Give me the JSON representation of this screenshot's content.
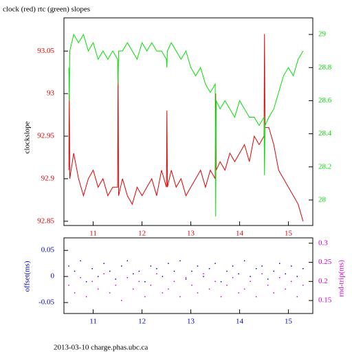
{
  "chart_data": [
    {
      "type": "line",
      "title": "clock (red) rtc (green) slopes",
      "ylabel": "clockslope",
      "x": [
        10.5,
        10.51,
        10.52,
        10.6,
        10.7,
        10.8,
        10.9,
        11.0,
        11.1,
        11.2,
        11.3,
        11.4,
        11.5,
        11.51,
        11.52,
        11.6,
        11.7,
        11.8,
        11.9,
        12.0,
        12.1,
        12.2,
        12.3,
        12.4,
        12.5,
        12.51,
        12.52,
        12.6,
        12.7,
        12.8,
        12.9,
        13.0,
        13.1,
        13.2,
        13.3,
        13.4,
        13.5,
        13.51,
        13.52,
        13.6,
        13.7,
        13.8,
        13.9,
        14.0,
        14.1,
        14.2,
        14.3,
        14.4,
        14.5,
        14.51,
        14.52,
        14.6,
        14.7,
        14.8,
        14.9,
        15.0,
        15.1,
        15.2,
        15.3
      ],
      "series": [
        {
          "name": "clock",
          "color": "#e00000",
          "values": [
            92.91,
            93.0,
            92.9,
            92.93,
            92.9,
            92.88,
            92.9,
            92.91,
            92.89,
            92.9,
            92.88,
            92.89,
            92.89,
            93.03,
            92.88,
            92.9,
            92.88,
            92.87,
            92.89,
            92.88,
            92.89,
            92.9,
            92.88,
            92.91,
            92.89,
            92.98,
            92.89,
            92.91,
            92.89,
            92.9,
            92.88,
            92.89,
            92.9,
            92.91,
            92.89,
            92.91,
            92.9,
            93.0,
            92.91,
            92.92,
            92.91,
            92.93,
            92.92,
            92.93,
            92.94,
            92.92,
            92.95,
            92.94,
            92.95,
            93.07,
            92.96,
            92.96,
            92.94,
            92.91,
            92.9,
            92.89,
            92.88,
            92.87,
            92.85
          ]
        },
        {
          "name": "rtc",
          "color": "#00e000",
          "axis": "y2",
          "values": [
            28.8,
            28.6,
            28.9,
            29.0,
            28.95,
            29.0,
            28.9,
            28.95,
            28.85,
            28.9,
            28.85,
            28.9,
            28.85,
            28.7,
            28.9,
            28.9,
            28.95,
            28.9,
            28.85,
            28.95,
            28.9,
            28.95,
            28.9,
            28.9,
            28.85,
            28.8,
            28.9,
            28.95,
            28.9,
            28.85,
            28.9,
            28.8,
            28.75,
            28.8,
            28.7,
            28.65,
            28.7,
            27.9,
            28.6,
            28.55,
            28.6,
            28.55,
            28.5,
            28.6,
            28.55,
            28.5,
            28.5,
            28.45,
            28.5,
            28.15,
            28.45,
            28.5,
            28.55,
            28.65,
            28.75,
            28.8,
            28.75,
            28.85,
            28.9
          ]
        }
      ],
      "xlim": [
        10.4,
        15.5
      ],
      "xticks": [
        11,
        12,
        13,
        14,
        15
      ],
      "ylim": [
        92.845,
        93.089
      ],
      "yticks": [
        92.85,
        92.9,
        92.95,
        93,
        93.05
      ],
      "y2lim": [
        27.846,
        29.1
      ],
      "y2ticks": [
        28,
        28.2,
        28.4,
        28.6,
        28.8,
        29
      ]
    },
    {
      "type": "scatter",
      "ylabel": "offset(ms)",
      "y2label": "rnd-trip(ms)",
      "x": [
        10.5,
        10.62,
        10.74,
        10.86,
        10.98,
        11.1,
        11.22,
        11.34,
        11.46,
        11.58,
        11.7,
        11.82,
        11.94,
        12.06,
        12.18,
        12.3,
        12.42,
        12.54,
        12.66,
        12.78,
        12.9,
        13.02,
        13.14,
        13.26,
        13.38,
        13.5,
        13.62,
        13.74,
        13.86,
        13.98,
        14.1,
        14.22,
        14.34,
        14.46,
        14.58,
        14.7,
        14.82,
        14.94,
        15.06,
        15.18,
        15.3
      ],
      "series": [
        {
          "name": "offset",
          "color": "#0000cc",
          "values": [
            0.02,
            0.01,
            0.03,
            -0.01,
            0.015,
            0.0,
            0.025,
            0.01,
            -0.005,
            0.02,
            0.03,
            0.005,
            0.01,
            -0.01,
            0.02,
            0.015,
            0.0,
            0.025,
            0.01,
            0.03,
            -0.005,
            0.01,
            0.02,
            0.0,
            0.015,
            0.025,
            -0.01,
            0.01,
            0.02,
            0.005,
            0.03,
            0.0,
            0.015,
            0.02,
            -0.005,
            0.01,
            0.025,
            0.005,
            0.02,
            0.0,
            0.015
          ]
        },
        {
          "name": "rnd-trip",
          "color": "#cc00cc",
          "axis": "y2",
          "values": [
            0.19,
            0.17,
            0.21,
            0.16,
            0.2,
            0.18,
            0.22,
            0.17,
            0.19,
            0.15,
            0.21,
            0.18,
            0.2,
            0.16,
            0.19,
            0.22,
            0.17,
            0.18,
            0.2,
            0.16,
            0.21,
            0.19,
            0.17,
            0.22,
            0.18,
            0.2,
            0.16,
            0.19,
            0.21,
            0.17,
            0.18,
            0.2,
            0.16,
            0.22,
            0.19,
            0.17,
            0.21,
            0.18,
            0.2,
            0.16,
            0.19
          ]
        }
      ],
      "xlim": [
        10.4,
        15.5
      ],
      "xticks": [
        11,
        12,
        13,
        14,
        15
      ],
      "ylim": [
        -0.071,
        0.074
      ],
      "yticks": [
        -0.05,
        0,
        0.05
      ],
      "y2lim": [
        0.116,
        0.314
      ],
      "y2ticks": [
        0.15,
        0.2,
        0.25,
        0.3
      ]
    }
  ],
  "footer": "2013-03-10 charge.phas.ubc.ca"
}
